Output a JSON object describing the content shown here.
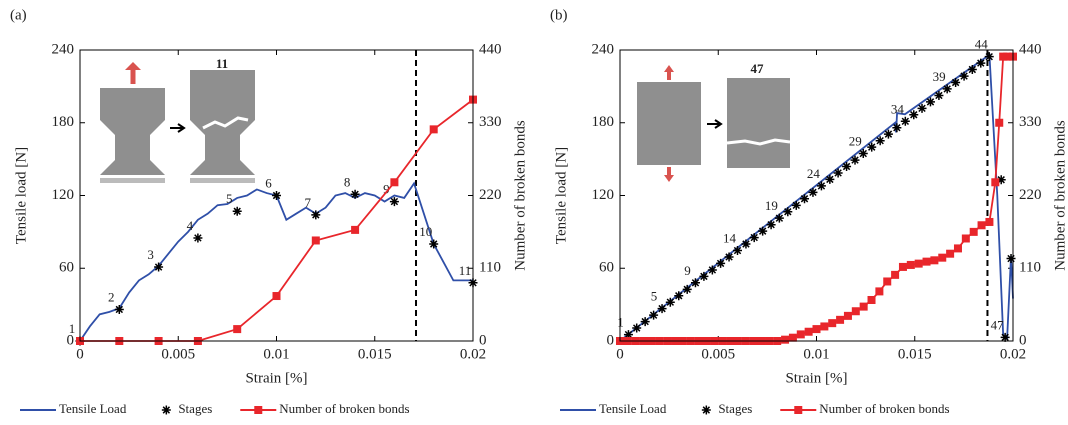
{
  "chart_data": [
    {
      "type": "line",
      "panel_label": "(a)",
      "inset_label": "11",
      "xlabel": "Strain [%]",
      "ylabel": "Tensile load [N]",
      "y2label": "Number of broken bonds",
      "xlim": [
        0,
        0.02
      ],
      "ylim": [
        0,
        240
      ],
      "y2lim": [
        0,
        440
      ],
      "xticks": [
        0,
        0.005,
        0.01,
        0.015,
        0.02
      ],
      "yticks": [
        0,
        60,
        120,
        180,
        240
      ],
      "y2ticks": [
        0,
        110,
        220,
        330,
        440
      ],
      "vline": 0.0171,
      "series": [
        {
          "name": "Tensile Load",
          "type": "line",
          "color": "#2f4fa8",
          "x": [
            0,
            0.0005,
            0.001,
            0.0015,
            0.002,
            0.0025,
            0.003,
            0.0035,
            0.004,
            0.0045,
            0.005,
            0.0055,
            0.006,
            0.0065,
            0.007,
            0.0075,
            0.008,
            0.0085,
            0.009,
            0.0095,
            0.01,
            0.0105,
            0.011,
            0.0115,
            0.012,
            0.0125,
            0.013,
            0.0135,
            0.014,
            0.0145,
            0.015,
            0.0155,
            0.016,
            0.0165,
            0.017,
            0.0175,
            0.018,
            0.0185,
            0.019,
            0.0195,
            0.02
          ],
          "values": [
            0,
            12,
            22,
            24,
            27,
            40,
            50,
            55,
            62,
            72,
            82,
            90,
            100,
            105,
            112,
            113,
            118,
            120,
            125,
            122,
            120,
            100,
            105,
            110,
            105,
            110,
            120,
            122,
            118,
            122,
            120,
            115,
            120,
            118,
            130,
            105,
            80,
            65,
            50,
            50,
            50
          ]
        },
        {
          "name": "Stages",
          "type": "scatter",
          "color": "#000000",
          "x": [
            0,
            0.002,
            0.004,
            0.006,
            0.008,
            0.01,
            0.012,
            0.014,
            0.016,
            0.018,
            0.02
          ],
          "values": [
            0,
            26,
            61,
            85,
            107,
            120,
            104,
            121,
            115,
            80,
            48
          ],
          "labels": [
            "1",
            "2",
            "3",
            "4",
            "5",
            "6",
            "7",
            "8",
            "9",
            "10",
            "11"
          ]
        },
        {
          "name": "Number of broken bonds",
          "type": "line",
          "marker": "square",
          "color": "#e8262b",
          "axis": "y2",
          "x": [
            0,
            0.002,
            0.004,
            0.006,
            0.008,
            0.01,
            0.012,
            0.014,
            0.016,
            0.018,
            0.02
          ],
          "values": [
            0,
            0,
            0,
            0,
            18,
            68,
            152,
            168,
            240,
            320,
            365
          ]
        }
      ]
    },
    {
      "type": "line",
      "panel_label": "(b)",
      "inset_label": "47",
      "xlabel": "Strain [%]",
      "ylabel": "Tensile load [N]",
      "y2label": "Number of broken bonds",
      "xlim": [
        0,
        0.02
      ],
      "ylim": [
        0,
        240
      ],
      "y2lim": [
        0,
        440
      ],
      "xticks": [
        0,
        0.005,
        0.01,
        0.015,
        0.02
      ],
      "yticks": [
        0,
        60,
        120,
        180,
        240
      ],
      "y2ticks": [
        0,
        110,
        220,
        330,
        440
      ],
      "vline": 0.0187,
      "series": [
        {
          "name": "Tensile Load",
          "type": "line",
          "color": "#2f4fa8",
          "x": [
            0,
            0.014,
            0.01405,
            0.0141,
            0.0145,
            0.0188,
            0.0192,
            0.0195,
            0.0197,
            0.0199,
            0.02
          ],
          "values": [
            0,
            180,
            172,
            188,
            187,
            236,
            120,
            5,
            2,
            70,
            35
          ]
        },
        {
          "name": "Stages",
          "type": "scatter",
          "color": "#000000",
          "x": [
            0.00043,
            0.00085,
            0.00128,
            0.00171,
            0.00214,
            0.00256,
            0.00299,
            0.00342,
            0.00384,
            0.00427,
            0.0047,
            0.00512,
            0.00555,
            0.00598,
            0.00641,
            0.00683,
            0.00726,
            0.00769,
            0.00811,
            0.00854,
            0.00897,
            0.00939,
            0.00982,
            0.01025,
            0.01068,
            0.0111,
            0.01153,
            0.01196,
            0.01238,
            0.01281,
            0.01324,
            0.01366,
            0.01409,
            0.01452,
            0.01495,
            0.01537,
            0.0158,
            0.01623,
            0.01665,
            0.01708,
            0.01751,
            0.01793,
            0.01836,
            0.01879,
            0.0194,
            0.0199,
            0.0196
          ],
          "values": [
            5.3,
            10.7,
            16,
            21.3,
            26.7,
            32,
            37.3,
            42.6,
            48,
            53.3,
            58.6,
            64,
            69.3,
            74.6,
            80,
            85.3,
            90.6,
            95.9,
            101.3,
            106.6,
            111.9,
            117.3,
            122.6,
            127.9,
            133.3,
            138.6,
            143.9,
            149.2,
            154.6,
            159.9,
            165.2,
            170.6,
            175.9,
            181.2,
            186.6,
            191.9,
            197.2,
            202.5,
            207.9,
            213.2,
            218.5,
            223.9,
            229.2,
            234.5,
            133,
            68,
            3
          ],
          "labels": [
            "1",
            null,
            null,
            null,
            "5",
            null,
            null,
            null,
            "9",
            null,
            null,
            null,
            null,
            "14",
            null,
            null,
            null,
            null,
            "19",
            null,
            null,
            null,
            null,
            "24",
            null,
            null,
            null,
            null,
            "29",
            null,
            null,
            null,
            null,
            "34",
            null,
            null,
            null,
            null,
            "39",
            null,
            null,
            null,
            null,
            "44",
            null,
            null,
            "47"
          ]
        },
        {
          "name": "Number of broken bonds",
          "type": "line",
          "marker": "square",
          "color": "#e8262b",
          "axis": "y2",
          "x": [
            0,
            0.0004,
            0.0008,
            0.0012,
            0.0016,
            0.002,
            0.0024,
            0.0028,
            0.0032,
            0.0036,
            0.004,
            0.0044,
            0.0048,
            0.0052,
            0.0056,
            0.006,
            0.0064,
            0.0068,
            0.0072,
            0.0076,
            0.008,
            0.0084,
            0.0088,
            0.0092,
            0.0096,
            0.01,
            0.0104,
            0.0108,
            0.0112,
            0.0116,
            0.012,
            0.0124,
            0.0128,
            0.0132,
            0.0136,
            0.014,
            0.0144,
            0.0148,
            0.0152,
            0.0156,
            0.016,
            0.0164,
            0.0168,
            0.0172,
            0.0176,
            0.018,
            0.0184,
            0.0188,
            0.0191,
            0.0193,
            0.0195,
            0.0197,
            0.02
          ],
          "values": [
            0,
            0,
            0,
            0,
            0,
            0,
            0,
            0,
            0,
            0,
            0,
            0,
            0,
            0,
            0,
            0,
            0,
            0,
            0,
            0,
            0,
            2,
            5,
            10,
            14,
            18,
            22,
            27,
            32,
            38,
            45,
            52,
            62,
            75,
            90,
            100,
            112,
            115,
            117,
            120,
            122,
            126,
            132,
            140,
            155,
            165,
            175,
            180,
            240,
            330,
            430,
            430,
            430
          ]
        }
      ]
    }
  ]
}
